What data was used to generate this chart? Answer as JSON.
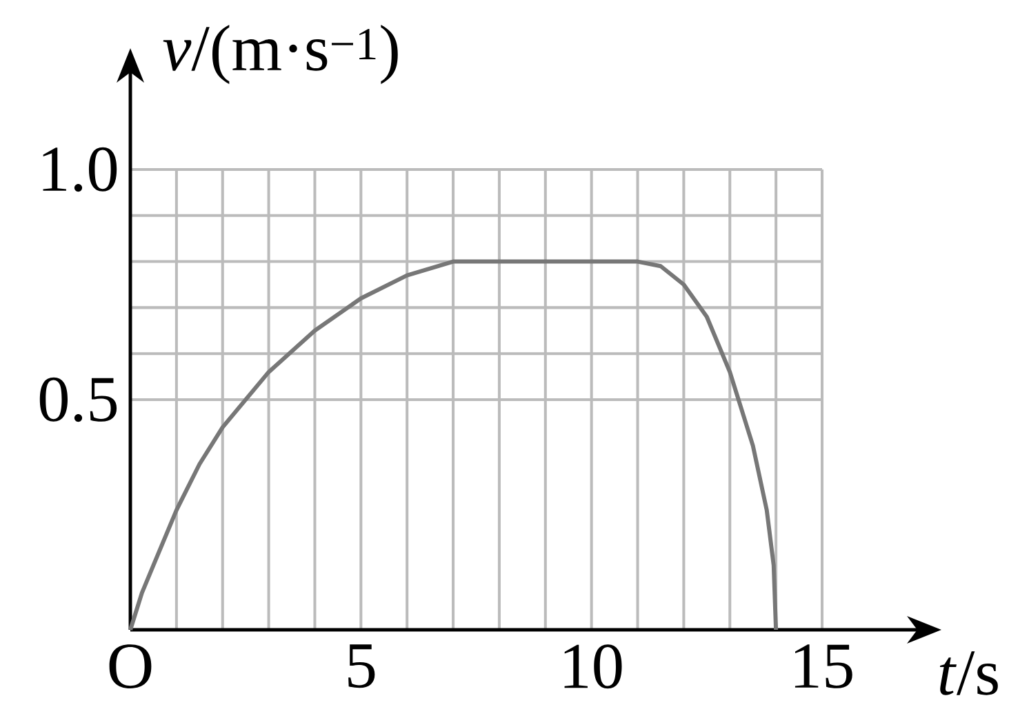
{
  "chart_data": {
    "type": "line",
    "xlabel": "*t*/s",
    "ylabel": "*v*/(m·s$^{−1}$)",
    "x": [
      0,
      0.25,
      0.5,
      1,
      1.5,
      2,
      3,
      4,
      5,
      6,
      7,
      11,
      11.5,
      12,
      12.5,
      13,
      13.5,
      13.8,
      13.95,
      14
    ],
    "series": [
      {
        "color": "#777777",
        "values": [
          0,
          0.08,
          0.14,
          0.26,
          0.36,
          0.44,
          0.56,
          0.65,
          0.72,
          0.77,
          0.8,
          0.8,
          0.79,
          0.75,
          0.68,
          0.56,
          0.4,
          0.26,
          0.14,
          0
        ]
      }
    ],
    "xlim": [
      0,
      15
    ],
    "ylim": [
      0,
      1
    ],
    "xticks": [
      {
        "value": 0,
        "label": "O"
      },
      5,
      10,
      15
    ],
    "yticks": [
      0.5,
      {
        "value": 1,
        "label": "1.0"
      }
    ],
    "grid": true,
    "marker": "none",
    "line_style": "solid"
  }
}
